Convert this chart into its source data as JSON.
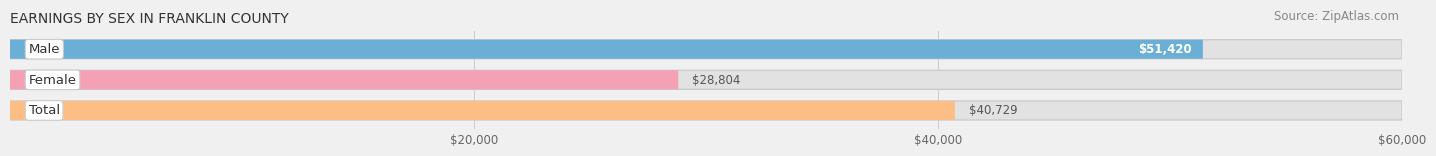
{
  "title": "EARNINGS BY SEX IN FRANKLIN COUNTY",
  "source": "Source: ZipAtlas.com",
  "categories": [
    "Male",
    "Female",
    "Total"
  ],
  "values": [
    51420,
    28804,
    40729
  ],
  "colors": [
    "#6baed6",
    "#f4a0b5",
    "#fdbe85"
  ],
  "value_labels": [
    "$51,420",
    "$28,804",
    "$40,729"
  ],
  "value_inside": [
    true,
    false,
    false
  ],
  "xlim": [
    0,
    60000
  ],
  "xticks": [
    20000,
    40000,
    60000
  ],
  "xtick_labels": [
    "$20,000",
    "$40,000",
    "$60,000"
  ],
  "title_fontsize": 10,
  "source_fontsize": 8.5,
  "label_fontsize": 9.5,
  "value_fontsize": 8.5,
  "tick_fontsize": 8.5,
  "bar_height": 0.62,
  "background_color": "#f0f0f0",
  "bar_bg_color": "#e2e2e2",
  "bar_bg_edge_color": "#cccccc"
}
